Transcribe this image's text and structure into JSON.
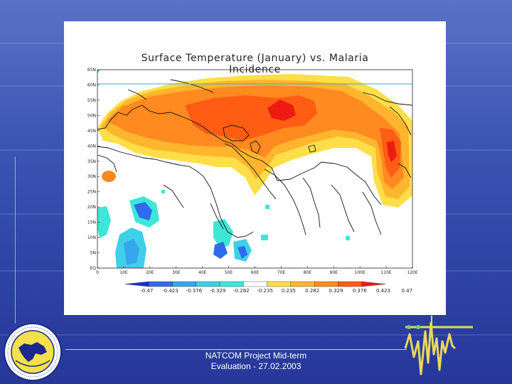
{
  "slide": {
    "footer_lines": [
      "NATCOM Project Mid-term",
      "Evaluation - 27.02.2003"
    ]
  },
  "map": {
    "title": "Surface Temperature (January) vs. Malaria Incidence",
    "lat_labels": [
      "65N",
      "60N",
      "55N",
      "50N",
      "45N",
      "40N",
      "35N",
      "30N",
      "25N",
      "20N",
      "15N",
      "10N",
      "5N",
      "EQ"
    ],
    "lon_labels": [
      "0",
      "10E",
      "20E",
      "30E",
      "40E",
      "50E",
      "60E",
      "70E",
      "80E",
      "90E",
      "100E",
      "110E",
      "120E"
    ],
    "lon_range": [
      0,
      120
    ],
    "lat_range": [
      0,
      65
    ],
    "colorbar": {
      "labels": [
        "-0.47",
        "-0.423",
        "-0.376",
        "-0.329",
        "-0.282",
        "-0.235",
        "0.235",
        "0.282",
        "0.329",
        "0.376",
        "0.423",
        "0.47"
      ],
      "colors": [
        "#1a2ad8",
        "#2f6bea",
        "#36a6ef",
        "#3fcfe8",
        "#3de6d6",
        "#ffffff",
        "#ffde4a",
        "#ffb52e",
        "#ff8a1f",
        "#ff5c14",
        "#ee1b10"
      ]
    }
  }
}
